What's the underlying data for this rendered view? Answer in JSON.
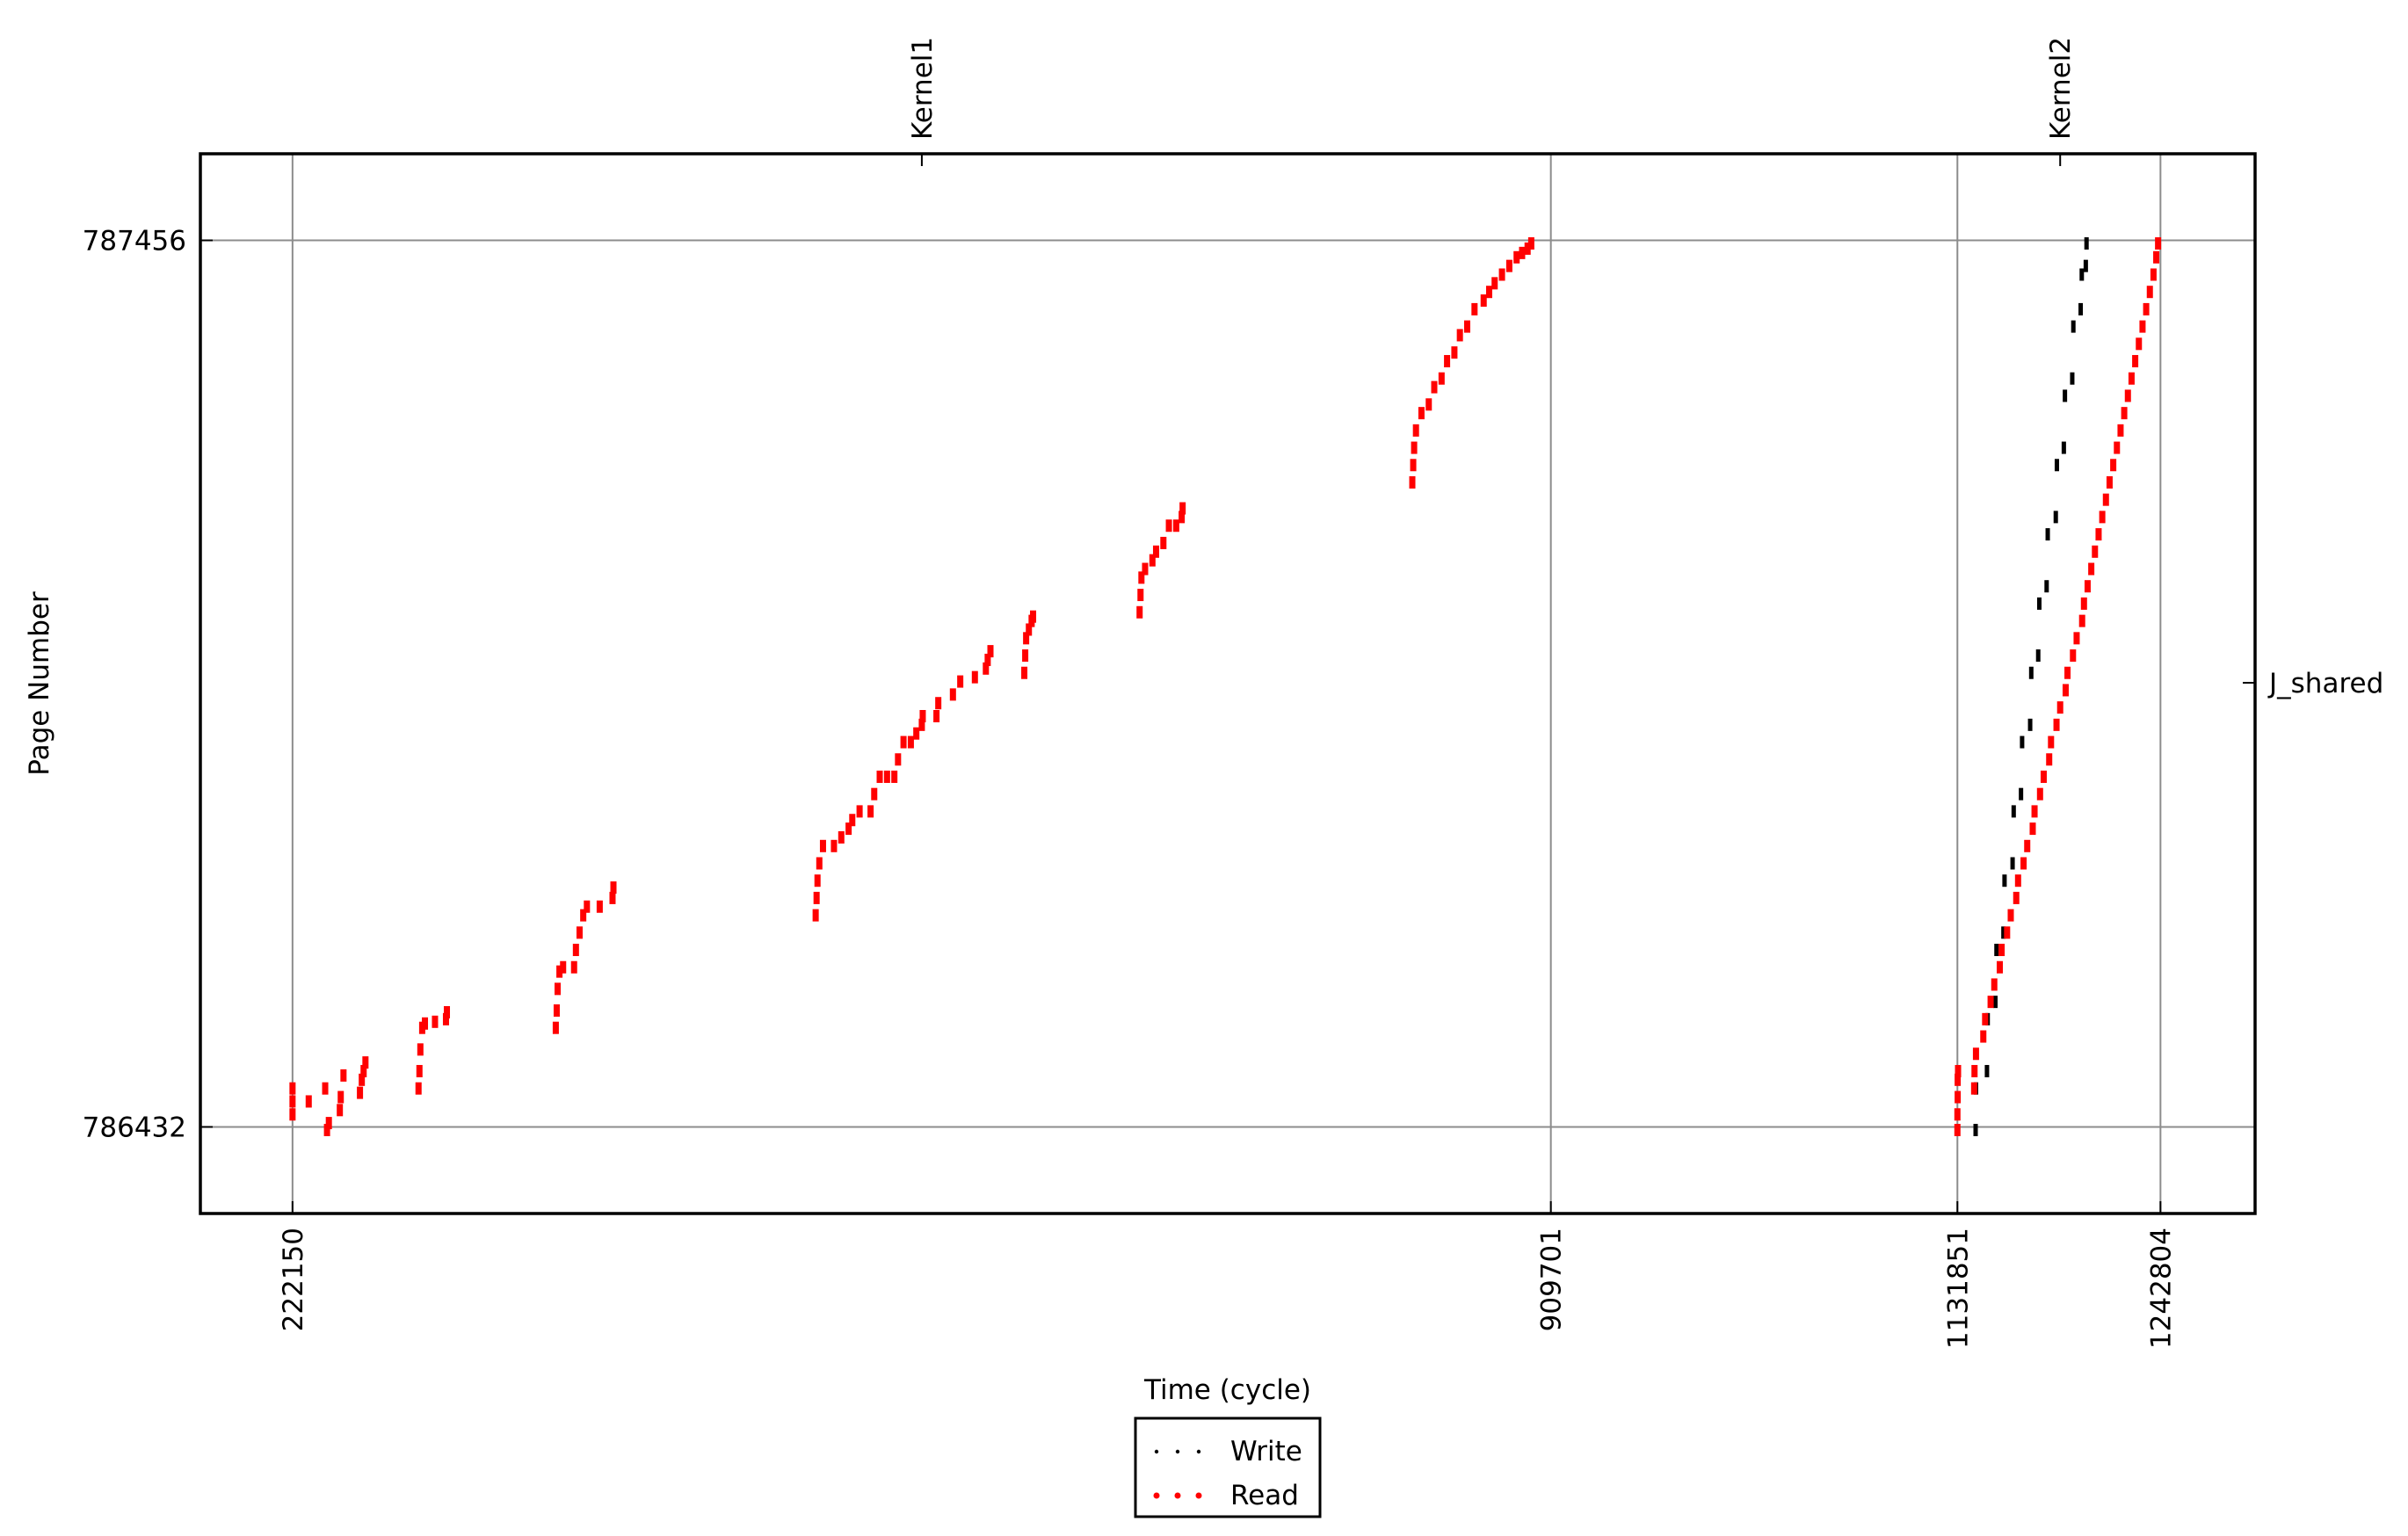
{
  "chart_data": {
    "type": "scatter",
    "xlabel": "Time (cycle)",
    "ylabel": "Page Number",
    "x_ticks": [
      222150,
      909701,
      1131851,
      1242804
    ],
    "y_ticks": [
      786432,
      787456
    ],
    "xlim": [
      171800,
      1294500
    ],
    "ylim": [
      786332,
      787556
    ],
    "top_labels": [
      {
        "x": 566000,
        "text": "Kernel1"
      },
      {
        "x": 1188000,
        "text": "Kernel2"
      }
    ],
    "right_labels": [
      {
        "y": 786945,
        "text": "J_shared"
      }
    ],
    "grid": true,
    "legend": {
      "position": "bottom-center",
      "entries": [
        "Write",
        "Read"
      ]
    },
    "series": [
      {
        "name": "Write",
        "color": "#000000",
        "points": [
          [
            1141800,
            786432
          ],
          [
            1142000,
            786480
          ],
          [
            1148000,
            786500
          ],
          [
            1148400,
            786560
          ],
          [
            1152600,
            786580
          ],
          [
            1153200,
            786640
          ],
          [
            1157000,
            786660
          ],
          [
            1157600,
            786720
          ],
          [
            1162000,
            786740
          ],
          [
            1162600,
            786800
          ],
          [
            1166600,
            786820
          ],
          [
            1167200,
            786880
          ],
          [
            1171600,
            786900
          ],
          [
            1172200,
            786960
          ],
          [
            1176000,
            786980
          ],
          [
            1176600,
            787040
          ],
          [
            1180600,
            787060
          ],
          [
            1181200,
            787120
          ],
          [
            1185600,
            787140
          ],
          [
            1186200,
            787200
          ],
          [
            1190000,
            787220
          ],
          [
            1190600,
            787280
          ],
          [
            1194600,
            787300
          ],
          [
            1195200,
            787360
          ],
          [
            1199200,
            787380
          ],
          [
            1199800,
            787420
          ],
          [
            1202000,
            787430
          ],
          [
            1202400,
            787456
          ]
        ]
      },
      {
        "name": "Read",
        "color": "#ff0000",
        "points": [
          [
            222150,
            786480
          ],
          [
            222150,
            786465
          ],
          [
            222150,
            786450
          ],
          [
            231000,
            786465
          ],
          [
            240000,
            786480
          ],
          [
            250000,
            786495
          ],
          [
            241000,
            786432
          ],
          [
            242000,
            786440
          ],
          [
            248000,
            786455
          ],
          [
            248500,
            786470
          ],
          [
            259000,
            786475
          ],
          [
            260000,
            786490
          ],
          [
            261000,
            786500
          ],
          [
            262000,
            786510
          ],
          [
            291000,
            786480
          ],
          [
            291500,
            786500
          ],
          [
            292000,
            786525
          ],
          [
            293000,
            786550
          ],
          [
            294500,
            786555
          ],
          [
            300000,
            786557
          ],
          [
            306000,
            786560
          ],
          [
            306500,
            786568
          ],
          [
            366000,
            786550
          ],
          [
            366500,
            786570
          ],
          [
            367000,
            786595
          ],
          [
            368000,
            786615
          ],
          [
            370000,
            786620
          ],
          [
            376000,
            786620
          ],
          [
            377000,
            786640
          ],
          [
            379000,
            786660
          ],
          [
            381000,
            786680
          ],
          [
            383000,
            786690
          ],
          [
            390000,
            786690
          ],
          [
            397000,
            786700
          ],
          [
            397500,
            786712
          ],
          [
            508000,
            786680
          ],
          [
            508500,
            786700
          ],
          [
            509000,
            786720
          ],
          [
            510000,
            786740
          ],
          [
            512000,
            786760
          ],
          [
            518000,
            786760
          ],
          [
            522000,
            786770
          ],
          [
            526000,
            786780
          ],
          [
            528000,
            786790
          ],
          [
            532000,
            786800
          ],
          [
            538000,
            786800
          ],
          [
            540000,
            786820
          ],
          [
            543000,
            786840
          ],
          [
            547000,
            786840
          ],
          [
            551000,
            786840
          ],
          [
            553000,
            786860
          ],
          [
            556000,
            786880
          ],
          [
            560000,
            786880
          ],
          [
            563000,
            786890
          ],
          [
            566000,
            786900
          ],
          [
            566500,
            786910
          ],
          [
            574000,
            786910
          ],
          [
            575000,
            786925
          ],
          [
            583000,
            786935
          ],
          [
            587000,
            786950
          ],
          [
            595000,
            786955
          ],
          [
            601000,
            786965
          ],
          [
            602000,
            786975
          ],
          [
            603500,
            786985
          ],
          [
            622000,
            786960
          ],
          [
            622500,
            786980
          ],
          [
            623000,
            787000
          ],
          [
            624500,
            787010
          ],
          [
            626000,
            787020
          ],
          [
            626800,
            787025
          ],
          [
            685000,
            787030
          ],
          [
            685500,
            787050
          ],
          [
            686000,
            787070
          ],
          [
            688000,
            787080
          ],
          [
            692000,
            787090
          ],
          [
            694000,
            787100
          ],
          [
            698000,
            787110
          ],
          [
            701000,
            787130
          ],
          [
            705000,
            787130
          ],
          [
            708000,
            787140
          ],
          [
            708500,
            787150
          ],
          [
            834000,
            787180
          ],
          [
            834500,
            787200
          ],
          [
            835000,
            787220
          ],
          [
            836000,
            787240
          ],
          [
            839000,
            787260
          ],
          [
            843000,
            787270
          ],
          [
            846000,
            787290
          ],
          [
            850000,
            787300
          ],
          [
            853000,
            787320
          ],
          [
            857000,
            787330
          ],
          [
            860000,
            787350
          ],
          [
            864000,
            787360
          ],
          [
            868000,
            787380
          ],
          [
            873000,
            787390
          ],
          [
            876000,
            787400
          ],
          [
            879000,
            787410
          ],
          [
            883000,
            787420
          ],
          [
            887000,
            787430
          ],
          [
            891000,
            787440
          ],
          [
            894000,
            787445
          ],
          [
            897000,
            787450
          ],
          [
            899000,
            787456
          ],
          [
            1131851,
            786432
          ],
          [
            1131851,
            786450
          ],
          [
            1132000,
            786470
          ],
          [
            1132000,
            786490
          ],
          [
            1132200,
            786500
          ],
          [
            1141000,
            786480
          ],
          [
            1141200,
            786500
          ],
          [
            1142000,
            786520
          ],
          [
            1146000,
            786540
          ],
          [
            1147000,
            786560
          ],
          [
            1150000,
            786580
          ],
          [
            1152000,
            786600
          ],
          [
            1155000,
            786620
          ],
          [
            1156000,
            786640
          ],
          [
            1159000,
            786660
          ],
          [
            1161000,
            786680
          ],
          [
            1164000,
            786700
          ],
          [
            1165000,
            786720
          ],
          [
            1168000,
            786740
          ],
          [
            1170000,
            786760
          ],
          [
            1173000,
            786780
          ],
          [
            1174000,
            786800
          ],
          [
            1177000,
            786820
          ],
          [
            1179000,
            786840
          ],
          [
            1182000,
            786860
          ],
          [
            1183000,
            786880
          ],
          [
            1186000,
            786900
          ],
          [
            1188000,
            786920
          ],
          [
            1191000,
            786940
          ],
          [
            1192000,
            786960
          ],
          [
            1195000,
            786980
          ],
          [
            1197000,
            787000
          ],
          [
            1200000,
            787020
          ],
          [
            1201000,
            787040
          ],
          [
            1203000,
            787060
          ],
          [
            1205000,
            787080
          ],
          [
            1207000,
            787100
          ],
          [
            1209000,
            787120
          ],
          [
            1211000,
            787140
          ],
          [
            1213000,
            787160
          ],
          [
            1215000,
            787180
          ],
          [
            1217000,
            787200
          ],
          [
            1219000,
            787220
          ],
          [
            1221000,
            787240
          ],
          [
            1223000,
            787260
          ],
          [
            1225000,
            787280
          ],
          [
            1227000,
            787300
          ],
          [
            1229000,
            787320
          ],
          [
            1231000,
            787340
          ],
          [
            1233000,
            787360
          ],
          [
            1235000,
            787380
          ],
          [
            1237000,
            787400
          ],
          [
            1239000,
            787420
          ],
          [
            1240500,
            787440
          ],
          [
            1241500,
            787456
          ]
        ]
      }
    ]
  }
}
